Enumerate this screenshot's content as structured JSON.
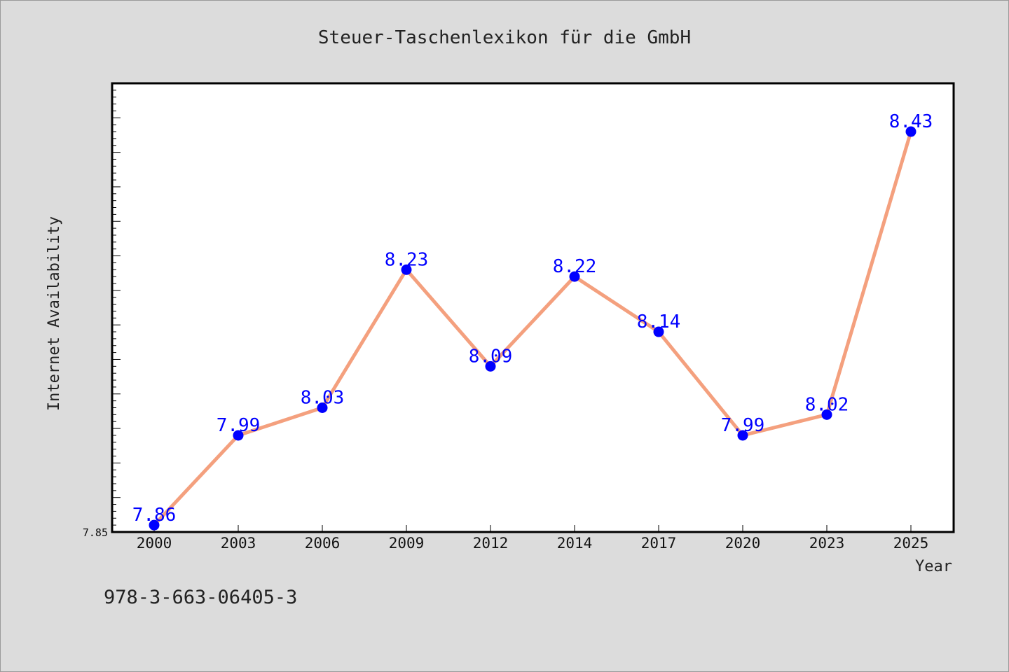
{
  "chart_data": {
    "type": "line",
    "title": "Steuer-Taschenlexikon für die GmbH",
    "xlabel": "Year",
    "ylabel": "Internet Availability",
    "categories": [
      "2000",
      "2003",
      "2006",
      "2009",
      "2012",
      "2014",
      "2017",
      "2020",
      "2023",
      "2025"
    ],
    "series": [
      {
        "values": [
          7.86,
          7.99,
          8.03,
          8.23,
          8.09,
          8.22,
          8.14,
          7.99,
          8.02,
          8.43
        ],
        "labels": [
          "7.86",
          "7.99",
          "8.03",
          "8.23",
          "8.09",
          "8.22",
          "8.14",
          "7.99",
          "8.02",
          "8.43"
        ]
      }
    ],
    "ylim": [
      7.85,
      8.5
    ],
    "y_tick_labels": [
      "7.85"
    ],
    "grid": false,
    "line_color": "#f4a07e",
    "marker_color": "#0000ff",
    "label_color": "#0000ff"
  },
  "footnote": "978-3-663-06405-3"
}
